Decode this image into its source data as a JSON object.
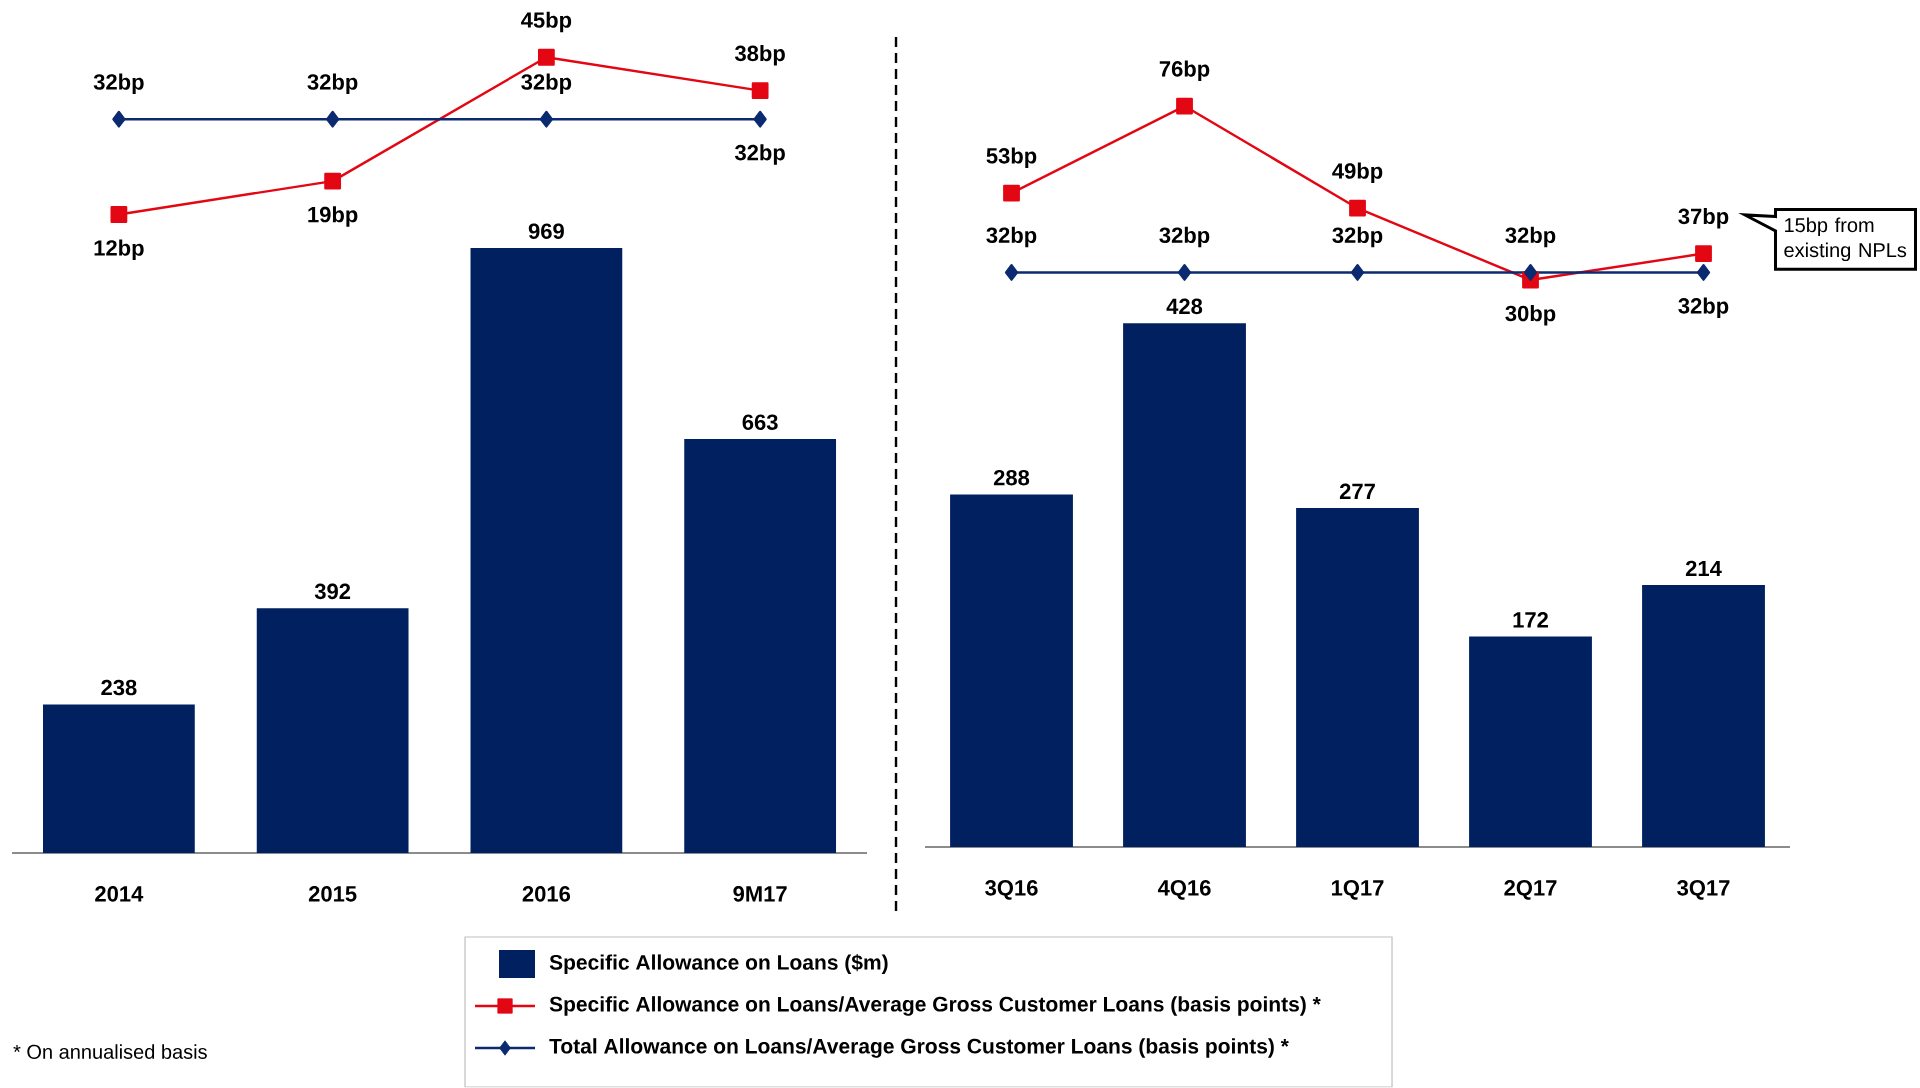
{
  "chart_data": [
    {
      "type": "bar",
      "categories": [
        "2014",
        "2015",
        "2016",
        "9M17"
      ],
      "legend": "bottom",
      "series": [
        {
          "name": "Specific Allowance on Loans ($m)",
          "color": "#002060",
          "values": [
            238,
            392,
            969,
            663
          ],
          "value_labels": [
            "238",
            "392",
            "969",
            "663"
          ]
        }
      ],
      "annotations": [
        "* On annualised basis"
      ]
    },
    {
      "type": "line",
      "categories": [
        null,
        null,
        null,
        null
      ],
      "tick_labels": false,
      "legend": "bottom",
      "series": [
        {
          "marker": "square",
          "name": "Specific Allowance on Loans/Average Gross Customer Loans (basis points) *",
          "color": "#e30613",
          "values": [
            12,
            19,
            45,
            38
          ],
          "value_labels": [
            "12bp",
            "19bp",
            "45bp",
            "38bp"
          ]
        },
        {
          "marker": "diamond",
          "name": "Total Allowance on Loans/Average Gross Customer Loans (basis points) *",
          "color": "#0b2a6f",
          "values": [
            32,
            32,
            32,
            32
          ],
          "value_labels": [
            "32bp",
            "32bp",
            "32bp",
            "32bp"
          ]
        }
      ]
    },
    {
      "type": "bar",
      "categories": [
        "3Q16",
        "4Q16",
        "1Q17",
        "2Q17",
        "3Q17"
      ],
      "series": [
        {
          "color": "#002060",
          "values": [
            288,
            428,
            277,
            172,
            214
          ],
          "value_labels": [
            "288",
            "428",
            "277",
            "172",
            "214"
          ]
        }
      ]
    },
    {
      "type": "line",
      "categories": [
        null,
        null,
        null,
        null,
        null
      ],
      "tick_labels": false,
      "series": [
        {
          "marker": "square",
          "color": "#e30613",
          "values": [
            53,
            76,
            49,
            30,
            37
          ],
          "value_labels": [
            "53bp",
            "76bp",
            "49bp",
            "30bp",
            "37bp"
          ]
        },
        {
          "marker": "diamond",
          "color": "#0b2a6f",
          "values": [
            32,
            32,
            32,
            32,
            32
          ],
          "value_labels": [
            "32bp",
            "32bp",
            "32bp",
            "32bp",
            "32bp"
          ]
        }
      ],
      "annotations": [
        "15bp from existing NPLs"
      ]
    }
  ]
}
